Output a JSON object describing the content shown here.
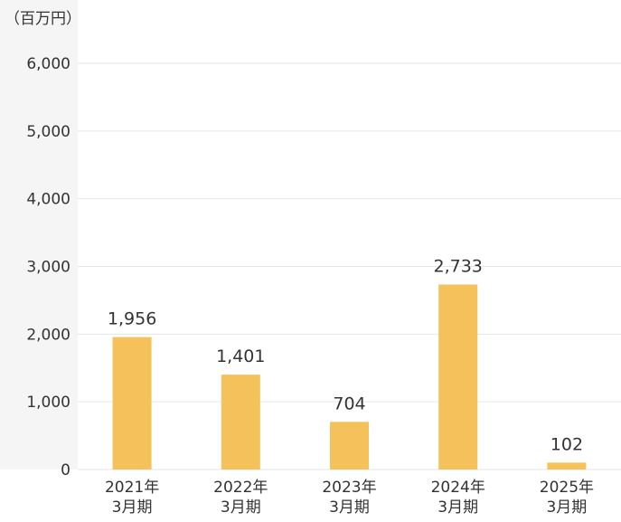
{
  "unit_label": "（百万円）",
  "colors": {
    "bar": "#F4C15B",
    "grid": "#E6E6E6",
    "axis_band": "#F5F5F5",
    "text": "#333333"
  },
  "chart_data": {
    "type": "bar",
    "title": "",
    "xlabel": "",
    "ylabel": "（百万円）",
    "categories": [
      [
        "2021年",
        "3月期"
      ],
      [
        "2022年",
        "3月期"
      ],
      [
        "2023年",
        "3月期"
      ],
      [
        "2024年",
        "3月期"
      ],
      [
        "2025年",
        "3月期"
      ]
    ],
    "values": [
      1956,
      1401,
      704,
      2733,
      102
    ],
    "value_labels": [
      "1,956",
      "1,401",
      "704",
      "2,733",
      "102"
    ],
    "ylim": [
      0,
      6000
    ],
    "yticks": [
      0,
      1000,
      2000,
      3000,
      4000,
      5000,
      6000
    ],
    "ytick_labels": [
      "0",
      "1,000",
      "2,000",
      "3,000",
      "4,000",
      "5,000",
      "6,000"
    ],
    "grid": true,
    "legend": "none"
  }
}
